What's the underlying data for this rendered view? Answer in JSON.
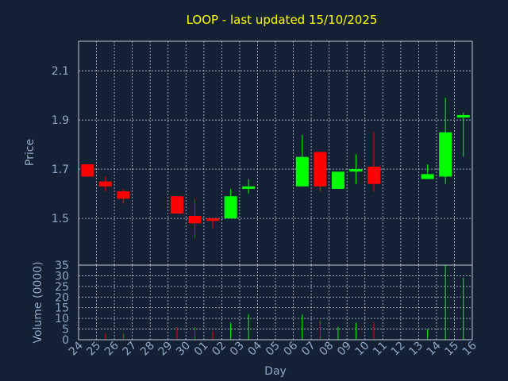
{
  "chart_data": {
    "type": "candlestick",
    "title": "LOOP - last updated 15/10/2025",
    "xlabel": "Day",
    "price_panel": {
      "ylabel": "Price",
      "ylim": [
        1.31,
        2.22
      ],
      "yticks": [
        "1.5",
        "1.7",
        "1.9",
        "2.1"
      ],
      "grid": true
    },
    "volume_panel": {
      "ylabel": "Volume (0000)",
      "ylim": [
        0,
        35
      ],
      "yticks": [
        "0",
        "5",
        "10",
        "15",
        "20",
        "25",
        "30",
        "35"
      ],
      "grid": true
    },
    "colors": {
      "up": "#00ff00",
      "down": "#ff0000"
    },
    "x_ticks": [
      "24",
      "25",
      "26",
      "27",
      "28",
      "29",
      "30",
      "01",
      "02",
      "03",
      "04",
      "05",
      "06",
      "07",
      "08",
      "09",
      "10",
      "11",
      "12",
      "13",
      "14",
      "15",
      "16"
    ],
    "candles": [
      {
        "day": "24",
        "open": 1.72,
        "high": 1.72,
        "low": 1.67,
        "close": 1.67,
        "volume": 0
      },
      {
        "day": "25",
        "open": 1.65,
        "high": 1.67,
        "low": 1.61,
        "close": 1.63,
        "volume": 3
      },
      {
        "day": "26",
        "open": 1.61,
        "high": 1.62,
        "low": 1.56,
        "close": 1.58,
        "volume": 3
      },
      {
        "day": "29",
        "open": 1.59,
        "high": 1.59,
        "low": 1.52,
        "close": 1.52,
        "volume": 6
      },
      {
        "day": "30",
        "open": 1.51,
        "high": 1.58,
        "low": 1.42,
        "close": 1.48,
        "volume": 6
      },
      {
        "day": "01",
        "open": 1.5,
        "high": 1.5,
        "low": 1.46,
        "close": 1.49,
        "volume": 4
      },
      {
        "day": "02",
        "open": 1.5,
        "high": 1.62,
        "low": 1.5,
        "close": 1.59,
        "volume": 8
      },
      {
        "day": "03",
        "open": 1.62,
        "high": 1.66,
        "low": 1.6,
        "close": 1.63,
        "volume": 12
      },
      {
        "day": "06",
        "open": 1.63,
        "high": 1.84,
        "low": 1.63,
        "close": 1.75,
        "volume": 12
      },
      {
        "day": "07",
        "open": 1.77,
        "high": 1.77,
        "low": 1.61,
        "close": 1.63,
        "volume": 9
      },
      {
        "day": "08",
        "open": 1.62,
        "high": 1.69,
        "low": 1.62,
        "close": 1.69,
        "volume": 6
      },
      {
        "day": "09",
        "open": 1.7,
        "high": 1.76,
        "low": 1.64,
        "close": 1.7,
        "volume": 8
      },
      {
        "day": "10",
        "open": 1.71,
        "high": 1.85,
        "low": 1.61,
        "close": 1.64,
        "volume": 8
      },
      {
        "day": "13",
        "open": 1.66,
        "high": 1.72,
        "low": 1.66,
        "close": 1.68,
        "volume": 5
      },
      {
        "day": "14",
        "open": 1.67,
        "high": 1.99,
        "low": 1.64,
        "close": 1.85,
        "volume": 35
      },
      {
        "day": "15",
        "open": 1.91,
        "high": 1.93,
        "low": 1.75,
        "close": 1.92,
        "volume": 29
      }
    ]
  }
}
